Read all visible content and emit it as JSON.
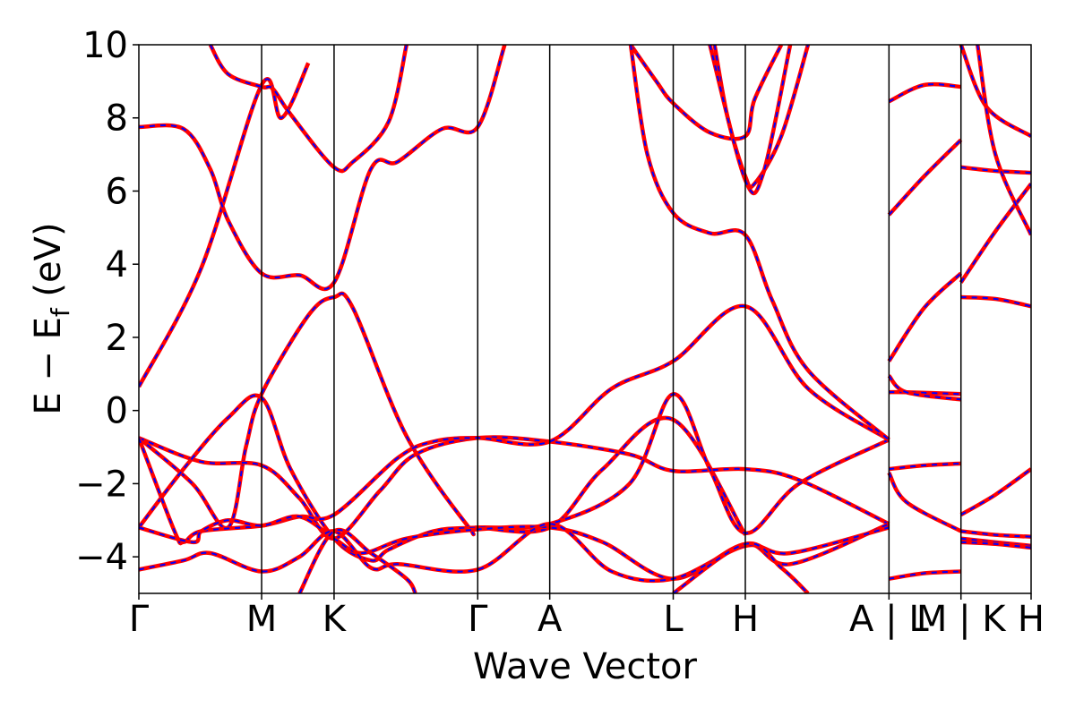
{
  "chart_data": {
    "type": "line",
    "title": "",
    "xlabel": "Wave Vector",
    "ylabel": "E − E",
    "ylabel_sub": "f",
    "ylabel_unit": " (eV)",
    "ylim": [
      -5,
      10
    ],
    "yticks": [
      -4,
      -2,
      0,
      2,
      4,
      6,
      8,
      10
    ],
    "ytick_labels": [
      "−4",
      "−2",
      "0",
      "2",
      "4",
      "6",
      "8",
      "10"
    ],
    "x_domain": [
      0,
      1
    ],
    "kpoint_positions": [
      0,
      0.1376,
      0.2188,
      0.3798,
      0.4605,
      0.5989,
      0.6797,
      0.8407,
      0.9214,
      1.0
    ],
    "kpoint_labels": [
      "Γ",
      "M",
      "K",
      "Γ",
      "A",
      "L",
      "H",
      "A | L",
      "M | K",
      "H"
    ],
    "bands": [
      [
        [
          0.0,
          0.65
        ],
        [
          0.07,
          3.9
        ],
        [
          0.1376,
          8.9
        ],
        [
          0.16,
          8.0
        ],
        [
          0.19,
          9.5
        ]
      ],
      [
        [
          0.0,
          7.75
        ],
        [
          0.05,
          7.7
        ],
        [
          0.08,
          6.6
        ],
        [
          0.1,
          5.2
        ],
        [
          0.1376,
          3.75
        ],
        [
          0.18,
          3.7
        ],
        [
          0.2188,
          3.5
        ],
        [
          0.26,
          6.6
        ],
        [
          0.29,
          6.8
        ],
        [
          0.34,
          7.7
        ],
        [
          0.3798,
          7.75
        ],
        [
          0.41,
          10.0
        ]
      ],
      [
        [
          0.08,
          10.0
        ],
        [
          0.1,
          9.2
        ],
        [
          0.1376,
          8.85
        ],
        [
          0.15,
          8.8
        ],
        [
          0.17,
          8.1
        ],
        [
          0.2188,
          6.65
        ],
        [
          0.24,
          6.8
        ],
        [
          0.28,
          7.9
        ],
        [
          0.3,
          10.0
        ]
      ],
      [
        [
          0.0,
          -0.75
        ],
        [
          0.06,
          -2.0
        ],
        [
          0.1,
          -3.2
        ],
        [
          0.12,
          -1.0
        ],
        [
          0.1376,
          0.45
        ],
        [
          0.19,
          2.6
        ],
        [
          0.2188,
          3.1
        ],
        [
          0.24,
          2.8
        ],
        [
          0.3,
          -0.7
        ],
        [
          0.37,
          -3.2
        ],
        [
          0.3798,
          -3.2
        ],
        [
          0.4605,
          -3.2
        ],
        [
          0.52,
          -1.6
        ],
        [
          0.5989,
          -0.25
        ],
        [
          0.6797,
          -3.4
        ]
      ],
      [
        [
          0.0,
          -0.75
        ],
        [
          0.07,
          -1.4
        ],
        [
          0.1376,
          -1.5
        ],
        [
          0.18,
          -2.4
        ],
        [
          0.2188,
          -3.5
        ],
        [
          0.27,
          -2.2
        ],
        [
          0.31,
          -1.2
        ],
        [
          0.3798,
          -0.75
        ],
        [
          0.4605,
          -0.85
        ],
        [
          0.55,
          -1.2
        ],
        [
          0.5989,
          -1.65
        ],
        [
          0.6797,
          -1.6
        ],
        [
          0.74,
          -1.9
        ],
        [
          0.8407,
          -3.1
        ]
      ],
      [
        [
          0.0,
          -3.2
        ],
        [
          0.05,
          -1.6
        ],
        [
          0.1,
          -0.2
        ],
        [
          0.1376,
          0.35
        ],
        [
          0.17,
          -1.6
        ],
        [
          0.2188,
          -3.5
        ],
        [
          0.26,
          -4.1
        ],
        [
          0.28,
          -3.8
        ],
        [
          0.33,
          -3.3
        ],
        [
          0.3798,
          -3.2
        ],
        [
          0.4605,
          -3.1
        ],
        [
          0.55,
          -2.0
        ],
        [
          0.5989,
          0.45
        ],
        [
          0.64,
          -1.6
        ],
        [
          0.6797,
          -3.35
        ],
        [
          0.74,
          -2.0
        ],
        [
          0.8407,
          -0.8
        ]
      ],
      [
        [
          0.0,
          -0.75
        ],
        [
          0.04,
          -3.3
        ],
        [
          0.05,
          -3.6
        ],
        [
          0.07,
          -3.3
        ],
        [
          0.1376,
          -3.15
        ],
        [
          0.18,
          -2.9
        ],
        [
          0.2188,
          -2.85
        ],
        [
          0.29,
          -1.3
        ],
        [
          0.33,
          -0.85
        ],
        [
          0.3798,
          -0.75
        ],
        [
          0.4605,
          -0.85
        ],
        [
          0.53,
          0.6
        ],
        [
          0.5989,
          1.35
        ],
        [
          0.6797,
          2.85
        ],
        [
          0.75,
          0.6
        ],
        [
          0.8407,
          -0.8
        ]
      ],
      [
        [
          0.0,
          -3.2
        ],
        [
          0.06,
          -3.6
        ],
        [
          0.07,
          -3.3
        ],
        [
          0.1,
          -3.0
        ],
        [
          0.1376,
          -3.15
        ],
        [
          0.18,
          -2.9
        ],
        [
          0.2188,
          -3.5
        ],
        [
          0.25,
          -3.9
        ],
        [
          0.3,
          -3.5
        ],
        [
          0.3798,
          -3.25
        ],
        [
          0.4605,
          -3.2
        ],
        [
          0.52,
          -3.6
        ],
        [
          0.5989,
          -4.6
        ],
        [
          0.6797,
          -3.65
        ],
        [
          0.73,
          -4.2
        ],
        [
          0.8407,
          -3.1
        ]
      ],
      [
        [
          0.0,
          -4.35
        ],
        [
          0.05,
          -4.1
        ],
        [
          0.08,
          -3.9
        ],
        [
          0.1376,
          -4.4
        ],
        [
          0.18,
          -4.0
        ],
        [
          0.2188,
          -3.3
        ],
        [
          0.26,
          -4.3
        ],
        [
          0.29,
          -4.2
        ],
        [
          0.3798,
          -4.35
        ],
        [
          0.4605,
          -3.1
        ],
        [
          0.53,
          -4.4
        ],
        [
          0.5989,
          -4.6
        ],
        [
          0.6797,
          -3.7
        ],
        [
          0.73,
          -3.9
        ],
        [
          0.8407,
          -3.2
        ]
      ],
      [
        [
          0.18,
          -5.0
        ],
        [
          0.2188,
          -3.3
        ],
        [
          0.26,
          -3.9
        ],
        [
          0.3,
          -4.6
        ],
        [
          0.31,
          -5.0
        ]
      ],
      [
        [
          0.5989,
          -5.0
        ],
        [
          0.6797,
          -3.65
        ],
        [
          0.72,
          -4.3
        ],
        [
          0.75,
          -5.0
        ]
      ],
      [
        [
          0.5512,
          10.0
        ],
        [
          0.58,
          9.0
        ],
        [
          0.5989,
          8.4
        ],
        [
          0.64,
          7.6
        ],
        [
          0.6797,
          7.5
        ],
        [
          0.69,
          8.5
        ],
        [
          0.72,
          10.0
        ]
      ],
      [
        [
          0.5512,
          10.0
        ],
        [
          0.57,
          7.0
        ],
        [
          0.5989,
          5.4
        ],
        [
          0.64,
          4.85
        ],
        [
          0.6797,
          4.8
        ],
        [
          0.71,
          3.0
        ],
        [
          0.75,
          1.1
        ],
        [
          0.8407,
          -0.8
        ]
      ],
      [
        [
          0.6452,
          10.0
        ],
        [
          0.66,
          8.0
        ],
        [
          0.6797,
          6.4
        ],
        [
          0.69,
          6.2
        ],
        [
          0.72,
          7.5
        ],
        [
          0.75,
          10.0
        ]
      ],
      [
        [
          0.64,
          10.0
        ],
        [
          0.6797,
          6.3
        ],
        [
          0.7,
          6.5
        ],
        [
          0.73,
          10.0
        ]
      ],
      [
        [
          0.8407,
          0.5
        ],
        [
          0.86,
          0.5
        ],
        [
          0.9214,
          0.45
        ]
      ],
      [
        [
          0.8407,
          1.35
        ],
        [
          0.88,
          2.8
        ],
        [
          0.9214,
          3.75
        ]
      ],
      [
        [
          0.8407,
          5.35
        ],
        [
          0.88,
          6.4
        ],
        [
          0.9214,
          7.4
        ]
      ],
      [
        [
          0.8407,
          8.45
        ],
        [
          0.88,
          8.9
        ],
        [
          0.9214,
          8.85
        ]
      ],
      [
        [
          0.8407,
          -1.6
        ],
        [
          0.88,
          -1.5
        ],
        [
          0.9214,
          -1.45
        ]
      ],
      [
        [
          0.8407,
          -1.7
        ],
        [
          0.86,
          -2.5
        ],
        [
          0.9214,
          -3.3
        ]
      ],
      [
        [
          0.8407,
          -4.6
        ],
        [
          0.88,
          -4.45
        ],
        [
          0.9214,
          -4.4
        ]
      ],
      [
        [
          0.8407,
          0.95
        ],
        [
          0.86,
          0.5
        ],
        [
          0.9214,
          0.3
        ]
      ],
      [
        [
          0.9214,
          3.5
        ],
        [
          0.96,
          4.9
        ],
        [
          1.0,
          6.2
        ]
      ],
      [
        [
          0.9214,
          3.1
        ],
        [
          0.96,
          3.05
        ],
        [
          1.0,
          2.85
        ]
      ],
      [
        [
          0.9214,
          6.65
        ],
        [
          0.96,
          6.55
        ],
        [
          1.0,
          6.5
        ]
      ],
      [
        [
          0.9214,
          -2.85
        ],
        [
          0.96,
          -2.3
        ],
        [
          1.0,
          -1.6
        ]
      ],
      [
        [
          0.9214,
          -3.3
        ],
        [
          0.96,
          -3.4
        ],
        [
          1.0,
          -3.45
        ]
      ],
      [
        [
          0.9214,
          -3.5
        ],
        [
          0.96,
          -3.6
        ],
        [
          1.0,
          -3.7
        ]
      ],
      [
        [
          0.9214,
          -3.6
        ],
        [
          0.96,
          -3.65
        ],
        [
          1.0,
          -3.75
        ]
      ],
      [
        [
          0.9214,
          10.0
        ],
        [
          0.95,
          8.3
        ],
        [
          1.0,
          7.5
        ]
      ],
      [
        [
          0.94,
          10.0
        ],
        [
          0.96,
          7.0
        ],
        [
          1.0,
          4.8
        ]
      ]
    ],
    "series": [
      {
        "name": "",
        "color": "#ff0000",
        "style": "solid"
      },
      {
        "name": "",
        "color": "#0000ff",
        "style": "dashed"
      }
    ],
    "grid": false,
    "legend": "none"
  }
}
